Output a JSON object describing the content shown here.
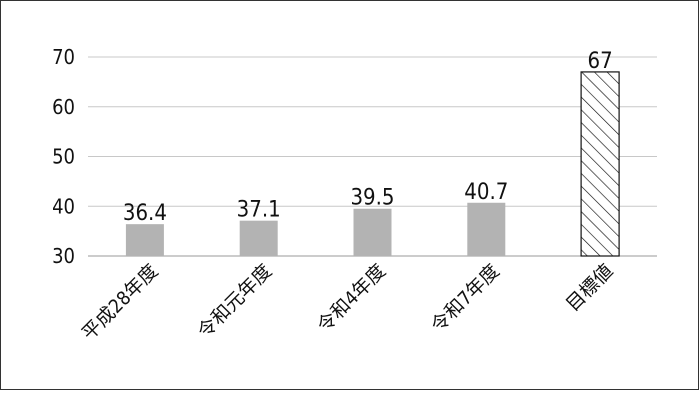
{
  "chart_data": {
    "type": "bar",
    "categories": [
      "平成28年度",
      "令和元年度",
      "令和4年度",
      "令和7年度",
      "目標値"
    ],
    "values": [
      36.4,
      37.1,
      39.5,
      40.7,
      67
    ],
    "data_labels": [
      "36.4",
      "37.1",
      "39.5",
      "40.7",
      "67"
    ],
    "title": "",
    "xlabel": "",
    "ylabel": "",
    "ylim": [
      30,
      70
    ],
    "yticks": [
      30,
      40,
      50,
      60,
      70
    ],
    "grid": true,
    "legend": "none",
    "colors": {
      "bar": "#b3b3b3",
      "target_fill": "#ffffff",
      "target_hatch": "#111111",
      "grid": "#c8c8c8",
      "frame": "#333333"
    },
    "target_style": "diagonal-hatch"
  }
}
